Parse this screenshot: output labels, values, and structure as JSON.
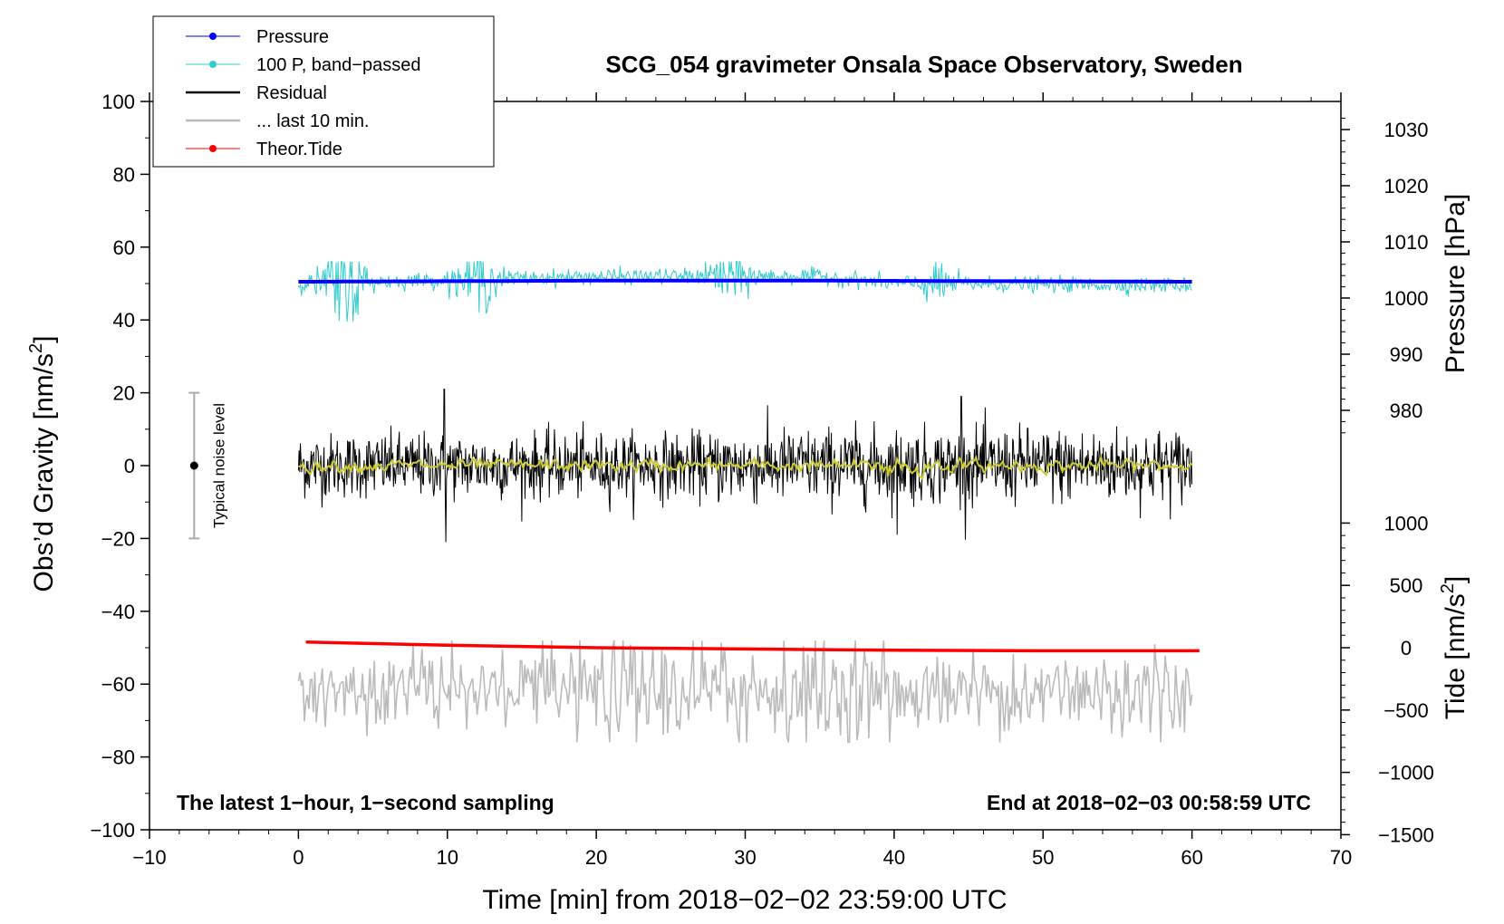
{
  "chart_data": {
    "type": "line",
    "title": "SCG_054 gravimeter Onsala Space Observatory, Sweden",
    "xlabel": "Time [min] from 2018−02−02 23:59:00 UTC",
    "ylabel_left": "Obs’d Gravity [nm/s",
    "ylabel_left_sup": "2",
    "ylabel_left_close": "]",
    "ylabel_right_top": "Pressure [hPa]",
    "ylabel_right_bottom": "Tide [nm/s",
    "ylabel_right_bottom_sup": "2",
    "ylabel_right_bottom_close": "]",
    "xlim": [
      -10,
      70
    ],
    "ylim": [
      -100,
      100
    ],
    "pressure_axis_range": [
      974,
      1032
    ],
    "tide_axis_range": [
      -1500,
      1000
    ],
    "x_ticks": [
      "−10",
      "0",
      "10",
      "20",
      "30",
      "40",
      "50",
      "60",
      "70"
    ],
    "x_tick_values": [
      -10,
      0,
      10,
      20,
      30,
      40,
      50,
      60,
      70
    ],
    "y_ticks": [
      "100",
      "80",
      "60",
      "40",
      "20",
      "0",
      "−20",
      "−40",
      "−60",
      "−80",
      "−100"
    ],
    "y_tick_values": [
      100,
      80,
      60,
      40,
      20,
      0,
      -20,
      -40,
      -60,
      -80,
      -100
    ],
    "pressure_ticks": [
      "1030",
      "1020",
      "1010",
      "1000",
      "990",
      "980"
    ],
    "pressure_tick_values": [
      1030,
      1020,
      1010,
      1000,
      990,
      980
    ],
    "tide_ticks": [
      "1000",
      "500",
      "0",
      "−500",
      "−1000",
      "−1500"
    ],
    "tide_tick_values": [
      1000,
      500,
      0,
      -500,
      -1000,
      -1500
    ],
    "legend": [
      {
        "label": "Pressure",
        "color": "#0000ff",
        "style": "line-dot"
      },
      {
        "label": "100 P, band−passed",
        "color": "#33cccc",
        "style": "line-dot"
      },
      {
        "label": "Residual",
        "color": "#000000",
        "style": "line"
      },
      {
        "label": "... last 10 min.",
        "color": "#bbbbbb",
        "style": "line"
      },
      {
        "label": "Theor.Tide",
        "color": "#ff0000",
        "style": "line-dot"
      }
    ],
    "series": [
      {
        "name": "Pressure",
        "axis": "pressure",
        "color": "#0000ff",
        "x_range": [
          0,
          60
        ],
        "level_hPa": 1003.0,
        "drift": [
          [
            0,
            1002.9
          ],
          [
            20,
            1003.1
          ],
          [
            35,
            1003.1
          ],
          [
            60,
            1002.9
          ]
        ]
      },
      {
        "name": "100 P, band−passed",
        "axis": "gravity",
        "color": "#33cccc",
        "x_range": [
          0,
          60
        ],
        "baseline": [
          [
            0,
            50
          ],
          [
            10,
            51
          ],
          [
            20,
            52
          ],
          [
            30,
            52
          ],
          [
            35,
            52
          ],
          [
            40,
            50
          ],
          [
            60,
            49.5
          ]
        ],
        "amplitude": 3,
        "bursts": [
          [
            3,
            9
          ],
          [
            12,
            5
          ],
          [
            29,
            5
          ],
          [
            43,
            3
          ]
        ]
      },
      {
        "name": "Residual",
        "axis": "gravity",
        "color": "#000000",
        "x_range": [
          0,
          60
        ],
        "mean": 0,
        "amplitude": 8,
        "extremes": [
          [
            9.8,
            21
          ],
          [
            9.9,
            -21
          ],
          [
            44.5,
            19
          ],
          [
            40.2,
            -19
          ]
        ]
      },
      {
        "name": "Residual (smoothed)",
        "axis": "gravity",
        "color": "#cccc33",
        "x_range": [
          0,
          60
        ],
        "mean": 0,
        "amplitude": 1.5
      },
      {
        "name": "... last 10 min.",
        "axis": "gravity",
        "color": "#bbbbbb",
        "x_range": [
          0,
          60
        ],
        "mean": -62,
        "amplitude": 9,
        "min": -76,
        "max": -48
      },
      {
        "name": "Theor.Tide",
        "axis": "tide",
        "color": "#ff0000",
        "points": [
          [
            0.5,
            45
          ],
          [
            10,
            20
          ],
          [
            20,
            0
          ],
          [
            30,
            -10
          ],
          [
            40,
            -20
          ],
          [
            50,
            -25
          ],
          [
            60.5,
            -25
          ]
        ]
      }
    ],
    "noise_bar": {
      "label": "Typical noise level",
      "x": -7,
      "center": 0,
      "low": -20,
      "high": 20
    }
  },
  "annotations": {
    "bottom_left": "The latest 1−hour, 1−second sampling",
    "bottom_right": "End at 2018−02−03 00:58:59 UTC"
  }
}
